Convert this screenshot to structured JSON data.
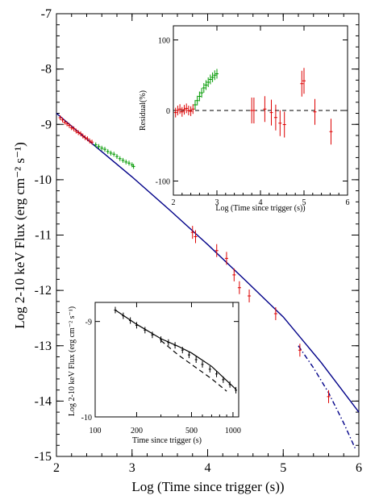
{
  "chart_data": [
    {
      "type": "scatter",
      "xlabel": "Log (Time since trigger (s))",
      "ylabel": "Log 2-10 keV Flux (erg cm⁻² s⁻¹)",
      "xlim": [
        2,
        6
      ],
      "ylim": [
        -15,
        -7
      ],
      "xticks": [
        "2",
        "3",
        "4",
        "5",
        "6"
      ],
      "yticks": [
        "-7",
        "-8",
        "-9",
        "-10",
        "-11",
        "-12",
        "-13",
        "-14",
        "-15"
      ],
      "colors": {
        "red": "#dd0000",
        "green": "#009900",
        "blue": "#000088"
      },
      "series": [
        {
          "color": "red",
          "x": [
            2.05,
            2.08,
            2.11,
            2.14,
            2.17,
            2.2,
            2.23,
            2.26,
            2.29,
            2.32,
            2.35,
            2.38,
            2.41,
            2.44,
            2.47
          ],
          "y": [
            -8.88,
            -8.92,
            -8.96,
            -8.99,
            -9.02,
            -9.06,
            -9.08,
            -9.12,
            -9.15,
            -9.17,
            -9.21,
            -9.24,
            -9.26,
            -9.3,
            -9.32
          ]
        },
        {
          "color": "green",
          "x": [
            2.52,
            2.56,
            2.6,
            2.64,
            2.68,
            2.72,
            2.76,
            2.8,
            2.84,
            2.88,
            2.92,
            2.96,
            3.0,
            3.02
          ],
          "y": [
            -9.37,
            -9.4,
            -9.43,
            -9.45,
            -9.49,
            -9.52,
            -9.54,
            -9.58,
            -9.62,
            -9.65,
            -9.68,
            -9.7,
            -9.73,
            -9.76
          ]
        },
        {
          "color": "red",
          "x": [
            3.8,
            3.84,
            4.12,
            4.25,
            4.35,
            4.42,
            4.55,
            4.9,
            5.22,
            5.6
          ],
          "y": [
            -10.95,
            -11.03,
            -11.28,
            -11.42,
            -11.72,
            -11.95,
            -12.1,
            -12.42,
            -13.08,
            -13.92
          ]
        }
      ],
      "model_curves": [
        {
          "style": "solid",
          "color": "blue",
          "x": [
            2.0,
            2.5,
            3.0,
            3.5,
            4.0,
            4.5,
            5.0,
            5.5,
            6.0
          ],
          "y": [
            -8.8,
            -9.38,
            -9.95,
            -10.55,
            -11.17,
            -11.82,
            -12.48,
            -13.3,
            -14.2
          ]
        },
        {
          "style": "dash-dot",
          "color": "blue",
          "x": [
            5.2,
            5.4,
            5.6,
            5.8,
            5.95
          ],
          "y": [
            -13.0,
            -13.4,
            -13.85,
            -14.4,
            -14.85
          ]
        }
      ]
    },
    {
      "type": "scatter",
      "xlabel": "Log (Time since trigger (s))",
      "ylabel": "Residual(%)",
      "xlim": [
        2,
        6
      ],
      "ylim": [
        -120,
        120
      ],
      "xticks": [
        "2",
        "3",
        "4",
        "5",
        "6"
      ],
      "yticks": [
        "100",
        "0",
        "-100"
      ],
      "series": [
        {
          "color": "red",
          "x": [
            2.05,
            2.1,
            2.15,
            2.2,
            2.25,
            2.3,
            2.35,
            2.4,
            2.45
          ],
          "y": [
            -3,
            0,
            2,
            -2,
            1,
            3,
            0,
            -1,
            2
          ]
        },
        {
          "color": "green",
          "x": [
            2.5,
            2.55,
            2.6,
            2.65,
            2.7,
            2.75,
            2.8,
            2.85,
            2.9,
            2.95,
            3.0
          ],
          "y": [
            8,
            14,
            20,
            25,
            32,
            36,
            40,
            44,
            47,
            50,
            52
          ]
        },
        {
          "color": "red",
          "x": [
            3.8,
            3.85,
            4.1,
            4.25,
            4.35,
            4.45,
            4.55,
            4.95,
            5.0,
            5.25,
            5.62
          ],
          "y": [
            0,
            0,
            2,
            -3,
            -10,
            -18,
            -20,
            38,
            42,
            -2,
            -30
          ]
        }
      ],
      "reference_line": {
        "style": "dashed",
        "y": 0
      }
    },
    {
      "type": "line",
      "xlabel": "Time since trigger (s)",
      "ylabel": "Log 2-10 keV Flux (erg cm⁻² s⁻¹)",
      "xscale": "log",
      "xlim": [
        100,
        1100
      ],
      "ylim": [
        -10,
        -8.8
      ],
      "xticks": [
        "100",
        "200",
        "500",
        "1000"
      ],
      "yticks": [
        "-9",
        "-10"
      ],
      "series": [
        {
          "style": "points",
          "color": "black",
          "x": [
            140,
            160,
            180,
            200,
            230,
            260,
            300,
            340,
            380,
            430,
            480,
            540,
            600,
            680,
            760,
            850,
            950,
            1050
          ],
          "y": [
            -8.88,
            -8.94,
            -8.99,
            -9.04,
            -9.09,
            -9.14,
            -9.19,
            -9.22,
            -9.25,
            -9.3,
            -9.35,
            -9.4,
            -9.45,
            -9.5,
            -9.55,
            -9.61,
            -9.66,
            -9.72
          ]
        },
        {
          "style": "solid",
          "color": "black",
          "x": [
            140,
            200,
            300,
            400,
            500,
            700,
            1050
          ],
          "y": [
            -8.88,
            -9.03,
            -9.18,
            -9.26,
            -9.33,
            -9.47,
            -9.71
          ]
        },
        {
          "style": "dashed",
          "color": "black",
          "x": [
            300,
            400,
            500,
            700,
            900
          ],
          "y": [
            -9.2,
            -9.35,
            -9.45,
            -9.6,
            -9.73
          ]
        }
      ]
    }
  ]
}
